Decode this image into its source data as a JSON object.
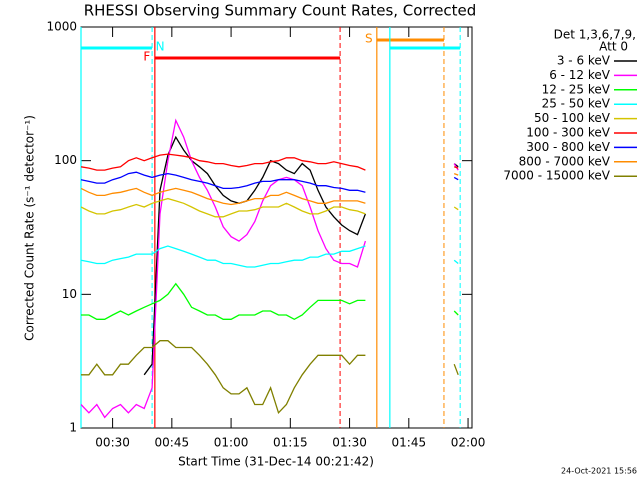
{
  "chart_data": {
    "type": "line",
    "title": "RHESSI Observing Summary Count Rates, Corrected",
    "xlabel": "Start Time (31-Dec-14 00:21:42)",
    "ylabel": "Corrected Count Rate (s⁻¹ detector⁻¹)",
    "legend_header": [
      "Det 1,3,6,7,9,",
      "Att 0"
    ],
    "footer": "24-Oct-2021 15:56",
    "log_y": true,
    "xlim": [
      22,
      121
    ],
    "ylim": [
      1,
      1000
    ],
    "yticks": [
      1,
      10,
      100,
      1000
    ],
    "xticks": [
      {
        "value": 30,
        "label": "00:30"
      },
      {
        "value": 45,
        "label": "00:45"
      },
      {
        "value": 60,
        "label": "01:00"
      },
      {
        "value": 75,
        "label": "01:15"
      },
      {
        "value": 90,
        "label": "01:30"
      },
      {
        "value": 105,
        "label": "01:45"
      },
      {
        "value": 120,
        "label": "02:00"
      }
    ],
    "x": [
      22,
      24,
      26,
      28,
      30,
      32,
      34,
      36,
      38,
      40,
      42,
      44,
      46,
      48,
      50,
      52,
      54,
      56,
      58,
      60,
      62,
      64,
      66,
      68,
      70,
      72,
      74,
      76,
      78,
      80,
      82,
      84,
      86,
      88,
      90,
      92,
      94,
      105,
      116.5,
      117.5
    ],
    "series": [
      {
        "name": "3 - 6 keV",
        "color": "#000000",
        "values": [
          null,
          null,
          null,
          null,
          null,
          null,
          null,
          null,
          2.5,
          3,
          60,
          110,
          150,
          120,
          100,
          90,
          80,
          65,
          55,
          50,
          48,
          50,
          60,
          75,
          100,
          95,
          85,
          80,
          95,
          85,
          60,
          45,
          38,
          33,
          30,
          28,
          40,
          null,
          95,
          90
        ]
      },
      {
        "name": "6 - 12 keV",
        "color": "#ff00ff",
        "values": [
          1.5,
          1.3,
          1.5,
          1.2,
          1.4,
          1.5,
          1.3,
          1.5,
          1.4,
          2,
          40,
          100,
          200,
          150,
          100,
          75,
          60,
          45,
          32,
          27,
          25,
          28,
          35,
          50,
          65,
          72,
          75,
          72,
          65,
          45,
          30,
          22,
          18,
          17,
          17,
          16,
          25,
          null,
          95,
          85
        ]
      },
      {
        "name": "12 - 25 keV",
        "color": "#00ff00",
        "values": [
          7,
          7,
          6.5,
          6.5,
          7,
          7.5,
          7,
          7.5,
          8,
          8.5,
          9,
          10,
          12,
          10,
          8,
          7.5,
          7,
          7,
          6.5,
          6.5,
          7,
          7,
          7,
          7.5,
          7.5,
          7,
          7,
          6.5,
          7,
          8,
          9,
          9,
          9,
          9,
          8.5,
          9,
          9,
          null,
          7.5,
          7
        ]
      },
      {
        "name": "25 - 50 keV",
        "color": "#00ffff",
        "values": [
          18,
          17.5,
          17,
          17,
          18,
          18.5,
          19,
          20,
          20,
          20,
          22,
          23,
          22,
          21,
          20,
          19,
          18,
          18,
          17,
          17,
          16.5,
          16,
          16,
          16.5,
          17,
          17,
          17.5,
          18,
          18,
          19,
          19,
          20,
          20,
          21,
          21,
          22,
          23,
          null,
          18,
          17
        ]
      },
      {
        "name": "50 - 100 keV",
        "color": "#d4c400",
        "values": [
          45,
          42,
          40,
          40,
          42,
          43,
          45,
          47,
          45,
          48,
          50,
          52,
          50,
          48,
          45,
          42,
          40,
          38,
          38,
          40,
          42,
          42,
          43,
          45,
          45,
          45,
          48,
          45,
          42,
          40,
          40,
          42,
          45,
          45,
          43,
          42,
          40,
          null,
          45,
          43
        ]
      },
      {
        "name": "100 - 300 keV",
        "color": "#ff0000",
        "values": [
          90,
          88,
          85,
          85,
          88,
          90,
          100,
          105,
          100,
          105,
          110,
          112,
          110,
          108,
          105,
          100,
          98,
          95,
          95,
          92,
          90,
          92,
          95,
          95,
          98,
          100,
          105,
          105,
          100,
          98,
          95,
          95,
          98,
          95,
          92,
          90,
          85,
          null,
          90,
          88
        ]
      },
      {
        "name": "300 - 800 keV",
        "color": "#0000ff",
        "values": [
          72,
          70,
          68,
          68,
          72,
          75,
          80,
          82,
          78,
          75,
          78,
          80,
          78,
          75,
          72,
          70,
          68,
          65,
          62,
          62,
          63,
          65,
          68,
          70,
          70,
          72,
          72,
          72,
          70,
          68,
          65,
          65,
          63,
          62,
          60,
          60,
          58,
          null,
          75,
          72
        ]
      },
      {
        "name": "800 - 7000 keV",
        "color": "#ff8c00",
        "values": [
          62,
          58,
          55,
          55,
          57,
          58,
          60,
          62,
          58,
          55,
          58,
          60,
          62,
          60,
          58,
          55,
          52,
          50,
          48,
          47,
          48,
          50,
          52,
          52,
          55,
          55,
          58,
          55,
          52,
          50,
          48,
          48,
          50,
          50,
          50,
          50,
          48,
          null,
          80,
          78
        ]
      },
      {
        "name": "7000 - 15000 keV",
        "color": "#808000",
        "values": [
          2.5,
          2.5,
          3,
          2.5,
          2.5,
          3,
          3,
          3.5,
          4,
          4,
          4.5,
          4.5,
          4,
          4,
          4,
          3.5,
          3,
          2.5,
          2,
          1.8,
          1.8,
          2,
          1.5,
          1.5,
          2,
          1.3,
          1.5,
          2,
          2.5,
          3,
          3.5,
          3.5,
          3.5,
          3.5,
          3,
          3.5,
          3.5,
          null,
          3,
          2.5
        ]
      }
    ],
    "intervals": [
      {
        "label": "N",
        "color": "#00ffff",
        "x": [
          22,
          40
        ]
      },
      {
        "label": "F",
        "color": "#ff0000",
        "x": [
          40.7,
          87.6
        ]
      },
      {
        "label": "S",
        "color": "#ff8c00",
        "x": [
          96.9,
          113.9
        ]
      },
      {
        "color": "#00ffff",
        "x": [
          100.2,
          118
        ]
      }
    ]
  }
}
